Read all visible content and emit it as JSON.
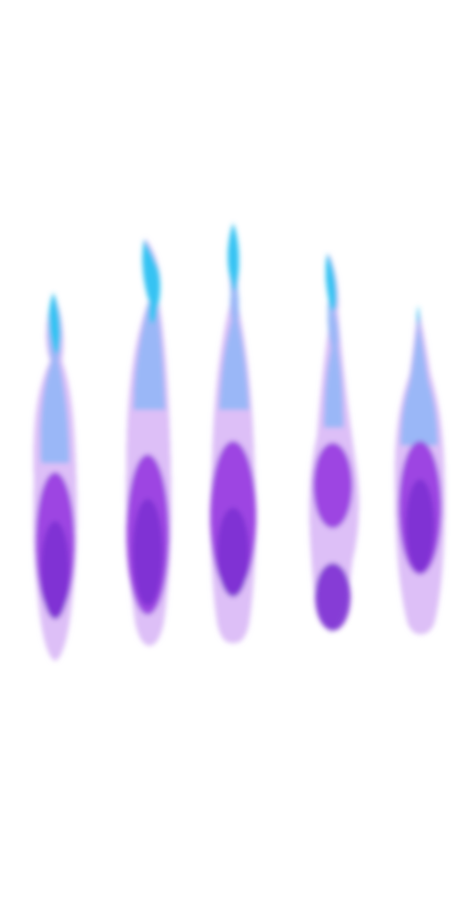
{
  "scene": {
    "background_color": "#ffffff",
    "description_visible_text": "",
    "palette": {
      "tip": "#35c3f3",
      "upper": "#8fb6f8",
      "mid": "#c8a6f2",
      "core": "#9a3fe0",
      "core_deep": "#7d2fd3",
      "fringe": "#d9b8f6"
    },
    "flames": [
      {
        "id": "flame-1",
        "icon": "purple-flame-icon"
      },
      {
        "id": "flame-2",
        "icon": "purple-flame-icon"
      },
      {
        "id": "flame-3",
        "icon": "purple-flame-icon"
      },
      {
        "id": "flame-4",
        "icon": "purple-flame-icon"
      },
      {
        "id": "flame-5",
        "icon": "purple-flame-icon"
      }
    ]
  }
}
